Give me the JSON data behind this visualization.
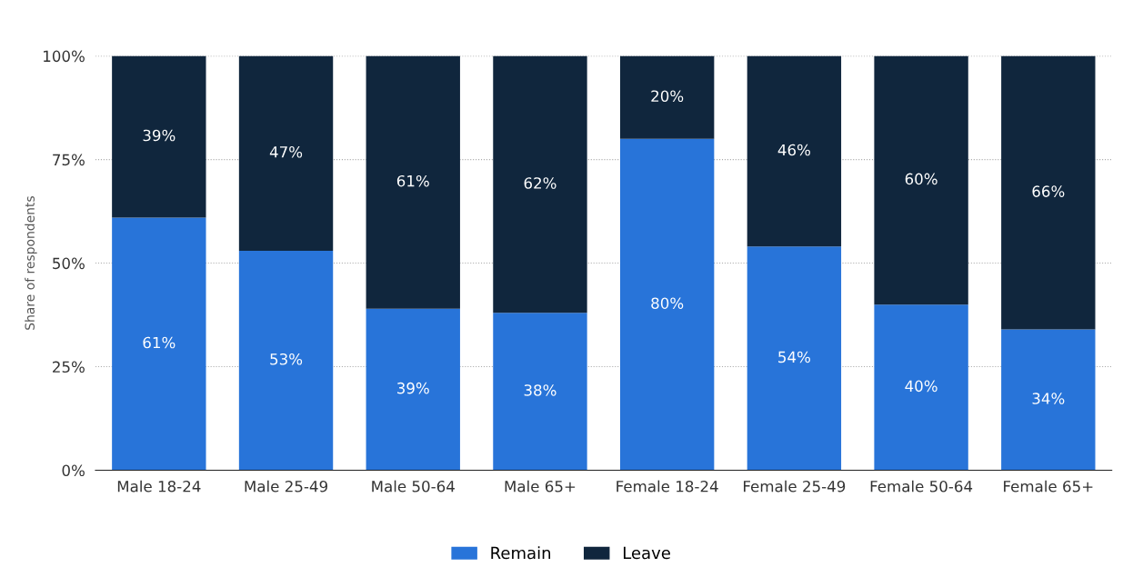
{
  "chart_data": {
    "type": "bar",
    "stacked": true,
    "ylabel": "Share of respondents",
    "categories": [
      "Male 18-24",
      "Male 25-49",
      "Male 50-64",
      "Male 65+",
      "Female 18-24",
      "Female 25-49",
      "Female 50-64",
      "Female 65+"
    ],
    "series": [
      {
        "name": "Remain",
        "color": "#2874d9",
        "values": [
          61,
          53,
          39,
          38,
          80,
          54,
          40,
          34
        ],
        "value_labels": [
          "61%",
          "53%",
          "39%",
          "38%",
          "80%",
          "54%",
          "40%",
          "34%"
        ]
      },
      {
        "name": "Leave",
        "color": "#10263d",
        "values": [
          39,
          47,
          61,
          62,
          20,
          46,
          60,
          66
        ],
        "value_labels": [
          "39%",
          "47%",
          "61%",
          "62%",
          "20%",
          "46%",
          "60%",
          "66%"
        ]
      }
    ],
    "ylim": [
      0,
      100
    ],
    "yticks": [
      {
        "value": 0,
        "label": "0%"
      },
      {
        "value": 25,
        "label": "25%"
      },
      {
        "value": 50,
        "label": "50%"
      },
      {
        "value": 75,
        "label": "75%"
      },
      {
        "value": 100,
        "label": "100%"
      }
    ],
    "grid": "y",
    "legend": "bottom"
  }
}
